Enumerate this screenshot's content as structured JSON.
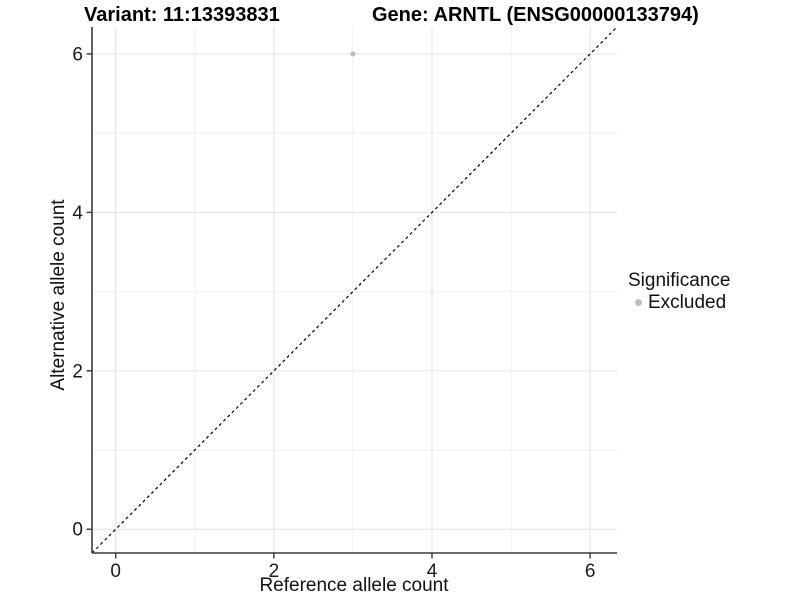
{
  "header": {
    "variant_title": "Variant: 11:13393831",
    "gene_title": "Gene: ARNTL (ENSG00000133794)"
  },
  "legend": {
    "title": "Significance",
    "items": [
      {
        "label": "Excluded",
        "color": "#bdbdbd"
      }
    ]
  },
  "chart_data": {
    "type": "scatter",
    "title": "Variant: 11:13393831 — Gene: ARNTL (ENSG00000133794)",
    "xlabel": "Reference allele count",
    "ylabel": "Alternative allele count",
    "series": [
      {
        "name": "Excluded",
        "color": "#bdbdbd",
        "points": [
          {
            "x": 3,
            "y": 6
          }
        ]
      }
    ],
    "reference_line": {
      "type": "identity y=x",
      "style": "dashed",
      "color": "#000000"
    },
    "xlim": [
      -0.3,
      6.34
    ],
    "ylim": [
      -0.3,
      6.34
    ],
    "x_ticks": [
      0,
      2,
      4,
      6
    ],
    "y_ticks": [
      0,
      2,
      4,
      6
    ],
    "x_minor_ticks": [
      1,
      3,
      5
    ],
    "y_minor_ticks": [
      1,
      3,
      5
    ],
    "grid": true,
    "legend_position": "right",
    "colors": {
      "grid_major": "#e6e6e6",
      "grid_minor": "#efefef",
      "axis_line": "#3a3a3a",
      "tick_text": "#1a1a1a"
    }
  }
}
